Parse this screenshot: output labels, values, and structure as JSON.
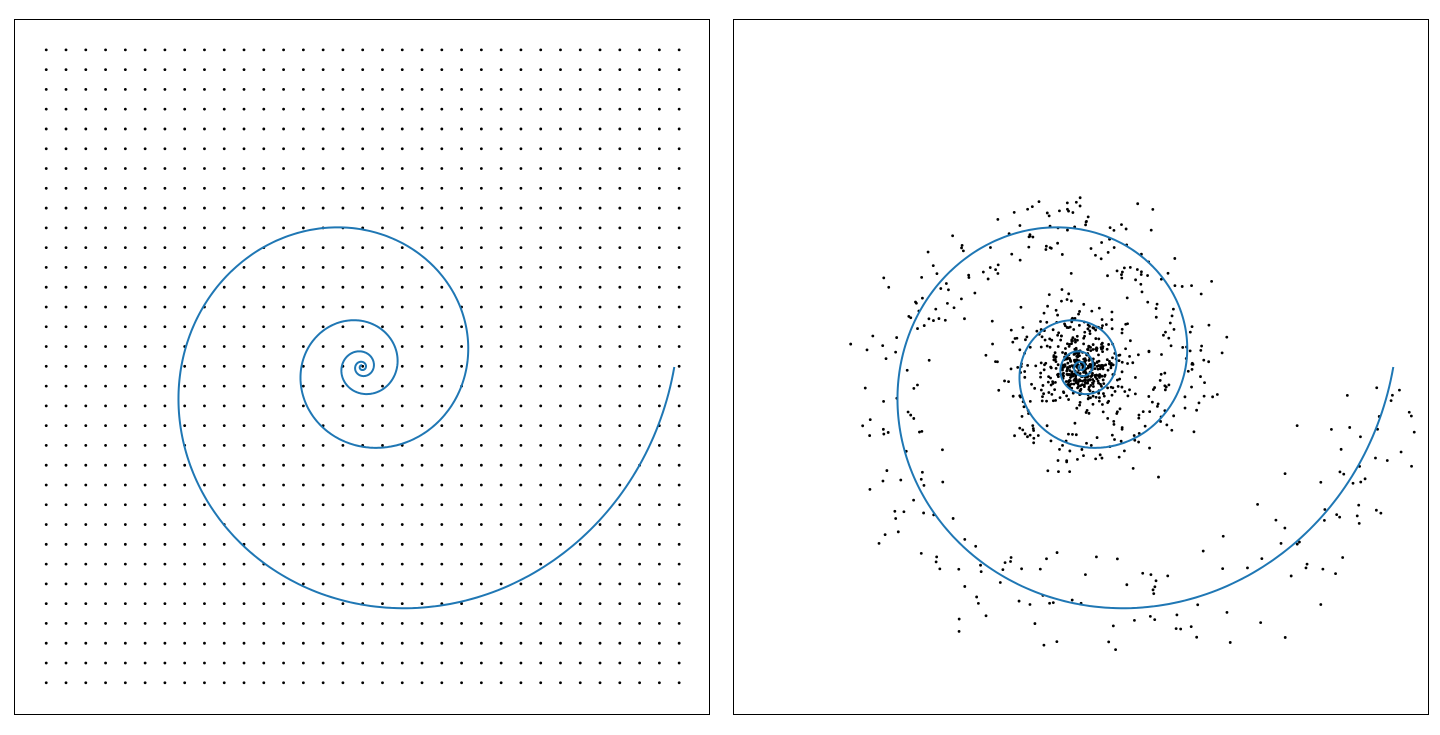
{
  "chart_data": [
    {
      "type": "scatter",
      "title": "",
      "xlabel": "",
      "ylabel": "",
      "axes_visible": false,
      "grid": false,
      "xlim": [
        -1.0,
        1.0
      ],
      "ylim": [
        -1.0,
        1.0
      ],
      "colors": {
        "points": "#000000",
        "curve": "#1f77b4"
      },
      "points": {
        "layout": "regular-grid",
        "x_start": -0.91,
        "x_step": 0.057,
        "x_count": 33,
        "y_start": -0.91,
        "y_step": 0.057,
        "y_count": 33
      },
      "curve": {
        "type": "logarithmic-spiral",
        "center": [
          0.0,
          0.0
        ],
        "r_start": 0.005,
        "r_end": 0.9,
        "turns": 4.75
      }
    },
    {
      "type": "scatter",
      "title": "",
      "xlabel": "",
      "ylabel": "",
      "axes_visible": false,
      "grid": false,
      "xlim": [
        -1.0,
        1.0
      ],
      "ylim": [
        -1.0,
        1.0
      ],
      "colors": {
        "points": "#000000",
        "curve": "#1f77b4"
      },
      "points": {
        "layout": "scattered-around-spiral",
        "count": 900,
        "seed": 7
      },
      "curve": {
        "type": "logarithmic-spiral",
        "center": [
          0.0,
          0.0
        ],
        "r_start": 0.005,
        "r_end": 0.9,
        "turns": 4.75
      }
    }
  ]
}
